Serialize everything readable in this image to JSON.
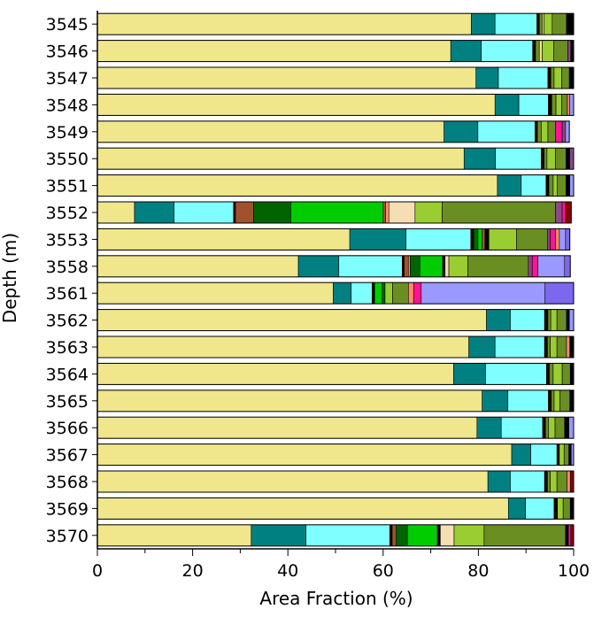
{
  "chart_data": {
    "type": "bar",
    "orientation": "horizontal",
    "stacked": true,
    "xlabel": "Area Fraction (%)",
    "ylabel": "Depth (m)",
    "xlim": [
      0,
      100
    ],
    "xticks": [
      "0",
      "20",
      "40",
      "60",
      "80",
      "100"
    ],
    "xtick_values": [
      0,
      20,
      40,
      60,
      80,
      100
    ],
    "grid": false,
    "legend": "none",
    "colors": [
      "#f0e68c",
      "#008080",
      "#7fffff",
      "#000000",
      "#9acd32",
      "#6b8e23",
      "#a0522d",
      "#006400",
      "#00cc00",
      "#f5deb3",
      "#ff1493",
      "#9999ff",
      "#8b4789",
      "#ff8c69",
      "#4b0082"
    ],
    "bars": [
      {
        "depth": "3545",
        "segments": [
          {
            "value": 78.5,
            "color": "#f0e68c"
          },
          {
            "value": 5.0,
            "color": "#008080"
          },
          {
            "value": 8.8,
            "color": "#7fffff"
          },
          {
            "value": 0.5,
            "color": "#000000"
          },
          {
            "value": 0.6,
            "color": "#6b8e23"
          },
          {
            "value": 0.4,
            "color": "#f0e68c"
          },
          {
            "value": 1.7,
            "color": "#9acd32"
          },
          {
            "value": 3.0,
            "color": "#6b8e23"
          },
          {
            "value": 1.5,
            "color": "#000000"
          }
        ]
      },
      {
        "depth": "3546",
        "segments": [
          {
            "value": 74.2,
            "color": "#f0e68c"
          },
          {
            "value": 6.4,
            "color": "#008080"
          },
          {
            "value": 10.8,
            "color": "#7fffff"
          },
          {
            "value": 0.6,
            "color": "#000000"
          },
          {
            "value": 0.8,
            "color": "#6b8e23"
          },
          {
            "value": 0.6,
            "color": "#f0e68c"
          },
          {
            "value": 2.4,
            "color": "#9acd32"
          },
          {
            "value": 3.0,
            "color": "#6b8e23"
          },
          {
            "value": 0.6,
            "color": "#8b4789"
          },
          {
            "value": 0.6,
            "color": "#000000"
          }
        ]
      },
      {
        "depth": "3547",
        "segments": [
          {
            "value": 79.5,
            "color": "#f0e68c"
          },
          {
            "value": 4.7,
            "color": "#008080"
          },
          {
            "value": 10.4,
            "color": "#7fffff"
          },
          {
            "value": 0.6,
            "color": "#000000"
          },
          {
            "value": 0.7,
            "color": "#6b8e23"
          },
          {
            "value": 1.6,
            "color": "#9acd32"
          },
          {
            "value": 1.6,
            "color": "#6b8e23"
          },
          {
            "value": 0.9,
            "color": "#000000"
          }
        ]
      },
      {
        "depth": "3548",
        "segments": [
          {
            "value": 83.5,
            "color": "#f0e68c"
          },
          {
            "value": 5.0,
            "color": "#008080"
          },
          {
            "value": 6.2,
            "color": "#7fffff"
          },
          {
            "value": 0.7,
            "color": "#000000"
          },
          {
            "value": 0.9,
            "color": "#6b8e23"
          },
          {
            "value": 1.2,
            "color": "#9acd32"
          },
          {
            "value": 1.2,
            "color": "#6b8e23"
          },
          {
            "value": 0.5,
            "color": "#ff8c69"
          },
          {
            "value": 0.8,
            "color": "#9999ff"
          }
        ]
      },
      {
        "depth": "3549",
        "segments": [
          {
            "value": 72.8,
            "color": "#f0e68c"
          },
          {
            "value": 7.1,
            "color": "#008080"
          },
          {
            "value": 12.0,
            "color": "#7fffff"
          },
          {
            "value": 0.5,
            "color": "#000000"
          },
          {
            "value": 0.8,
            "color": "#6b8e23"
          },
          {
            "value": 1.4,
            "color": "#9acd32"
          },
          {
            "value": 1.6,
            "color": "#6b8e23"
          },
          {
            "value": 1.4,
            "color": "#ff1493"
          },
          {
            "value": 0.7,
            "color": "#8b4789"
          },
          {
            "value": 0.8,
            "color": "#9999ff"
          }
        ]
      },
      {
        "depth": "3550",
        "segments": [
          {
            "value": 77.0,
            "color": "#f0e68c"
          },
          {
            "value": 6.6,
            "color": "#008080"
          },
          {
            "value": 9.6,
            "color": "#7fffff"
          },
          {
            "value": 0.6,
            "color": "#000000"
          },
          {
            "value": 0.6,
            "color": "#6b8e23"
          },
          {
            "value": 1.8,
            "color": "#9acd32"
          },
          {
            "value": 2.2,
            "color": "#6b8e23"
          },
          {
            "value": 0.8,
            "color": "#000000"
          },
          {
            "value": 0.8,
            "color": "#8b4789"
          }
        ]
      },
      {
        "depth": "3551",
        "segments": [
          {
            "value": 84.0,
            "color": "#f0e68c"
          },
          {
            "value": 5.0,
            "color": "#008080"
          },
          {
            "value": 5.2,
            "color": "#7fffff"
          },
          {
            "value": 0.6,
            "color": "#000000"
          },
          {
            "value": 0.9,
            "color": "#6b8e23"
          },
          {
            "value": 0.9,
            "color": "#9acd32"
          },
          {
            "value": 1.8,
            "color": "#6b8e23"
          },
          {
            "value": 0.8,
            "color": "#000000"
          },
          {
            "value": 0.8,
            "color": "#9999ff"
          }
        ]
      },
      {
        "depth": "3552",
        "segments": [
          {
            "value": 7.8,
            "color": "#f0e68c"
          },
          {
            "value": 8.3,
            "color": "#008080"
          },
          {
            "value": 12.5,
            "color": "#7fffff"
          },
          {
            "value": 0.4,
            "color": "#000000"
          },
          {
            "value": 3.8,
            "color": "#a0522d"
          },
          {
            "value": 7.8,
            "color": "#006400"
          },
          {
            "value": 19.4,
            "color": "#00cc00"
          },
          {
            "value": 0.5,
            "color": "#a0522d"
          },
          {
            "value": 0.7,
            "color": "#ff8c69"
          },
          {
            "value": 5.5,
            "color": "#f5deb3"
          },
          {
            "value": 5.7,
            "color": "#9acd32"
          },
          {
            "value": 23.8,
            "color": "#6b8e23"
          },
          {
            "value": 1.4,
            "color": "#8b4789"
          },
          {
            "value": 0.7,
            "color": "#ff1493"
          },
          {
            "value": 1.2,
            "color": "#8b0000"
          }
        ]
      },
      {
        "depth": "3553",
        "segments": [
          {
            "value": 53.0,
            "color": "#f0e68c"
          },
          {
            "value": 11.8,
            "color": "#008080"
          },
          {
            "value": 13.6,
            "color": "#7fffff"
          },
          {
            "value": 0.6,
            "color": "#000000"
          },
          {
            "value": 0.9,
            "color": "#006400"
          },
          {
            "value": 0.9,
            "color": "#00cc00"
          },
          {
            "value": 0.6,
            "color": "#a0522d"
          },
          {
            "value": 0.8,
            "color": "#000000"
          },
          {
            "value": 5.8,
            "color": "#9acd32"
          },
          {
            "value": 6.5,
            "color": "#6b8e23"
          },
          {
            "value": 0.6,
            "color": "#8b4789"
          },
          {
            "value": 1.1,
            "color": "#ff1493"
          },
          {
            "value": 0.8,
            "color": "#ff8c69"
          },
          {
            "value": 1.3,
            "color": "#9999ff"
          },
          {
            "value": 0.9,
            "color": "#7b68ee"
          }
        ]
      },
      {
        "depth": "3558",
        "segments": [
          {
            "value": 42.2,
            "color": "#f0e68c"
          },
          {
            "value": 8.5,
            "color": "#008080"
          },
          {
            "value": 13.3,
            "color": "#7fffff"
          },
          {
            "value": 0.4,
            "color": "#000000"
          },
          {
            "value": 0.9,
            "color": "#a0522d"
          },
          {
            "value": 0.4,
            "color": "#ff8c69"
          },
          {
            "value": 2.0,
            "color": "#006400"
          },
          {
            "value": 4.8,
            "color": "#00cc00"
          },
          {
            "value": 0.5,
            "color": "#000000"
          },
          {
            "value": 0.8,
            "color": "#f5deb3"
          },
          {
            "value": 4.0,
            "color": "#9acd32"
          },
          {
            "value": 12.7,
            "color": "#6b8e23"
          },
          {
            "value": 0.8,
            "color": "#8b4789"
          },
          {
            "value": 1.2,
            "color": "#ff1493"
          },
          {
            "value": 5.6,
            "color": "#9999ff"
          },
          {
            "value": 1.2,
            "color": "#7b68ee"
          }
        ]
      },
      {
        "depth": "3561",
        "segments": [
          {
            "value": 49.5,
            "color": "#f0e68c"
          },
          {
            "value": 3.8,
            "color": "#008080"
          },
          {
            "value": 4.4,
            "color": "#7fffff"
          },
          {
            "value": 0.5,
            "color": "#000000"
          },
          {
            "value": 1.6,
            "color": "#00cc00"
          },
          {
            "value": 0.6,
            "color": "#006400"
          },
          {
            "value": 1.6,
            "color": "#9acd32"
          },
          {
            "value": 3.3,
            "color": "#6b8e23"
          },
          {
            "value": 1.1,
            "color": "#ff8c69"
          },
          {
            "value": 1.6,
            "color": "#ff1493"
          },
          {
            "value": 26.0,
            "color": "#9999ff"
          },
          {
            "value": 6.4,
            "color": "#7b68ee"
          }
        ]
      },
      {
        "depth": "3562",
        "segments": [
          {
            "value": 81.7,
            "color": "#f0e68c"
          },
          {
            "value": 5.0,
            "color": "#008080"
          },
          {
            "value": 7.2,
            "color": "#7fffff"
          },
          {
            "value": 0.7,
            "color": "#000000"
          },
          {
            "value": 0.6,
            "color": "#6b8e23"
          },
          {
            "value": 1.3,
            "color": "#9acd32"
          },
          {
            "value": 2.0,
            "color": "#6b8e23"
          },
          {
            "value": 0.6,
            "color": "#000000"
          },
          {
            "value": 0.9,
            "color": "#9999ff"
          }
        ]
      },
      {
        "depth": "3563",
        "segments": [
          {
            "value": 78.0,
            "color": "#f0e68c"
          },
          {
            "value": 5.5,
            "color": "#008080"
          },
          {
            "value": 10.4,
            "color": "#7fffff"
          },
          {
            "value": 0.6,
            "color": "#000000"
          },
          {
            "value": 0.6,
            "color": "#6b8e23"
          },
          {
            "value": 1.4,
            "color": "#9acd32"
          },
          {
            "value": 2.0,
            "color": "#6b8e23"
          },
          {
            "value": 0.7,
            "color": "#ff8c69"
          },
          {
            "value": 0.8,
            "color": "#000000"
          }
        ]
      },
      {
        "depth": "3564",
        "segments": [
          {
            "value": 74.8,
            "color": "#f0e68c"
          },
          {
            "value": 6.7,
            "color": "#008080"
          },
          {
            "value": 12.8,
            "color": "#7fffff"
          },
          {
            "value": 0.6,
            "color": "#000000"
          },
          {
            "value": 0.8,
            "color": "#6b8e23"
          },
          {
            "value": 1.9,
            "color": "#9acd32"
          },
          {
            "value": 1.7,
            "color": "#6b8e23"
          },
          {
            "value": 0.7,
            "color": "#000000"
          }
        ]
      },
      {
        "depth": "3565",
        "segments": [
          {
            "value": 80.8,
            "color": "#f0e68c"
          },
          {
            "value": 5.4,
            "color": "#008080"
          },
          {
            "value": 8.5,
            "color": "#7fffff"
          },
          {
            "value": 0.6,
            "color": "#000000"
          },
          {
            "value": 0.6,
            "color": "#6b8e23"
          },
          {
            "value": 1.2,
            "color": "#9acd32"
          },
          {
            "value": 2.1,
            "color": "#6b8e23"
          },
          {
            "value": 0.8,
            "color": "#000000"
          }
        ]
      },
      {
        "depth": "3566",
        "segments": [
          {
            "value": 79.7,
            "color": "#f0e68c"
          },
          {
            "value": 5.1,
            "color": "#008080"
          },
          {
            "value": 8.7,
            "color": "#7fffff"
          },
          {
            "value": 0.6,
            "color": "#000000"
          },
          {
            "value": 0.6,
            "color": "#6b8e23"
          },
          {
            "value": 1.4,
            "color": "#9acd32"
          },
          {
            "value": 2.0,
            "color": "#6b8e23"
          },
          {
            "value": 0.9,
            "color": "#000000"
          },
          {
            "value": 1.0,
            "color": "#9999ff"
          }
        ]
      },
      {
        "depth": "3567",
        "segments": [
          {
            "value": 87.0,
            "color": "#f0e68c"
          },
          {
            "value": 4.0,
            "color": "#008080"
          },
          {
            "value": 5.5,
            "color": "#7fffff"
          },
          {
            "value": 0.5,
            "color": "#000000"
          },
          {
            "value": 1.0,
            "color": "#9acd32"
          },
          {
            "value": 1.0,
            "color": "#6b8e23"
          },
          {
            "value": 0.5,
            "color": "#000000"
          },
          {
            "value": 0.5,
            "color": "#9999ff"
          }
        ]
      },
      {
        "depth": "3568",
        "segments": [
          {
            "value": 82.0,
            "color": "#f0e68c"
          },
          {
            "value": 4.7,
            "color": "#008080"
          },
          {
            "value": 7.2,
            "color": "#7fffff"
          },
          {
            "value": 0.6,
            "color": "#000000"
          },
          {
            "value": 0.6,
            "color": "#6b8e23"
          },
          {
            "value": 1.4,
            "color": "#9acd32"
          },
          {
            "value": 2.1,
            "color": "#6b8e23"
          },
          {
            "value": 0.7,
            "color": "#ff8c69"
          },
          {
            "value": 0.7,
            "color": "#8b0000"
          }
        ]
      },
      {
        "depth": "3569",
        "segments": [
          {
            "value": 86.3,
            "color": "#f0e68c"
          },
          {
            "value": 3.6,
            "color": "#008080"
          },
          {
            "value": 6.0,
            "color": "#7fffff"
          },
          {
            "value": 0.7,
            "color": "#000000"
          },
          {
            "value": 1.2,
            "color": "#9acd32"
          },
          {
            "value": 1.5,
            "color": "#6b8e23"
          },
          {
            "value": 0.7,
            "color": "#000000"
          }
        ]
      },
      {
        "depth": "3570",
        "segments": [
          {
            "value": 32.3,
            "color": "#f0e68c"
          },
          {
            "value": 11.5,
            "color": "#008080"
          },
          {
            "value": 17.6,
            "color": "#7fffff"
          },
          {
            "value": 0.5,
            "color": "#000000"
          },
          {
            "value": 0.8,
            "color": "#a0522d"
          },
          {
            "value": 2.4,
            "color": "#006400"
          },
          {
            "value": 6.3,
            "color": "#00cc00"
          },
          {
            "value": 0.6,
            "color": "#000000"
          },
          {
            "value": 2.9,
            "color": "#f5deb3"
          },
          {
            "value": 6.3,
            "color": "#9acd32"
          },
          {
            "value": 17.1,
            "color": "#6b8e23"
          },
          {
            "value": 0.6,
            "color": "#000000"
          },
          {
            "value": 0.5,
            "color": "#ff1493"
          },
          {
            "value": 0.6,
            "color": "#8b0000"
          }
        ]
      }
    ]
  }
}
